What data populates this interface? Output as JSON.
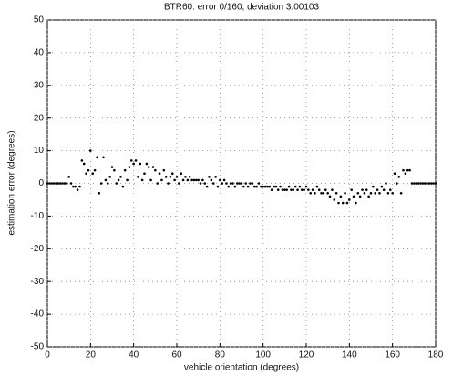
{
  "chart_data": {
    "type": "scatter",
    "title": "BTR60: error 0/160, deviation 3.00103",
    "xlabel": "vehicle orientation (degrees)",
    "ylabel": "estimation error (degrees)",
    "x": [
      0,
      1,
      2,
      3,
      4,
      5,
      6,
      7,
      8,
      9,
      10,
      11,
      12,
      13,
      14,
      15,
      16,
      17,
      18,
      19,
      20,
      21,
      22,
      23,
      24,
      25,
      26,
      27,
      28,
      29,
      30,
      31,
      32,
      33,
      34,
      35,
      36,
      37,
      38,
      39,
      40,
      41,
      42,
      43,
      44,
      45,
      46,
      47,
      48,
      49,
      50,
      51,
      52,
      53,
      54,
      55,
      56,
      57,
      58,
      59,
      60,
      61,
      62,
      63,
      64,
      65,
      66,
      67,
      68,
      69,
      70,
      71,
      72,
      73,
      74,
      75,
      76,
      77,
      78,
      79,
      80,
      81,
      82,
      83,
      84,
      85,
      86,
      87,
      88,
      89,
      90,
      91,
      92,
      93,
      94,
      95,
      96,
      97,
      98,
      99,
      100,
      101,
      102,
      103,
      104,
      105,
      106,
      107,
      108,
      109,
      110,
      111,
      112,
      113,
      114,
      115,
      116,
      117,
      118,
      119,
      120,
      121,
      122,
      123,
      124,
      125,
      126,
      127,
      128,
      129,
      130,
      131,
      132,
      133,
      134,
      135,
      136,
      137,
      138,
      139,
      140,
      141,
      142,
      143,
      144,
      145,
      146,
      147,
      148,
      149,
      150,
      151,
      152,
      153,
      154,
      155,
      156,
      157,
      158,
      159,
      160,
      161,
      162,
      163,
      164,
      165,
      166,
      167,
      168,
      169,
      170,
      171,
      172,
      173,
      174,
      175,
      176,
      177,
      178,
      179,
      180
    ],
    "values": [
      0,
      0,
      0,
      0,
      0,
      0,
      0,
      0,
      0,
      0,
      2,
      0,
      -1,
      -1,
      -2,
      -1,
      7,
      6,
      3,
      4,
      10,
      3,
      4,
      8,
      -3,
      0,
      8,
      1,
      0,
      2,
      5,
      4,
      0,
      1,
      2,
      -1,
      4,
      1,
      5,
      7,
      6,
      7,
      2,
      6,
      1,
      3,
      6,
      5,
      1,
      5,
      4,
      0,
      3,
      1,
      4,
      2,
      0,
      2,
      3,
      1,
      2,
      0,
      3,
      1,
      2,
      1,
      2,
      1,
      1,
      1,
      1,
      0,
      1,
      0,
      -1,
      2,
      1,
      0,
      2,
      -1,
      1,
      0,
      1,
      0,
      -1,
      0,
      0,
      -1,
      0,
      0,
      0,
      -1,
      0,
      -1,
      0,
      0,
      -1,
      -1,
      0,
      -1,
      -1,
      -1,
      -1,
      -1,
      -2,
      -1,
      -1,
      -2,
      -1,
      -2,
      -2,
      -2,
      -1,
      -2,
      -2,
      -1,
      -2,
      -1,
      -2,
      -2,
      -1,
      -2,
      -3,
      -2,
      -3,
      -1,
      -2,
      -3,
      -3,
      -2,
      -3,
      -4,
      -2,
      -5,
      -3,
      -6,
      -4,
      -6,
      -3,
      -6,
      -5,
      -2,
      -4,
      -6,
      -3,
      -4,
      -2,
      -3,
      -2,
      -4,
      -3,
      -1,
      -3,
      -2,
      -3,
      -1,
      -2,
      0,
      -3,
      -2,
      -3,
      3,
      0,
      2,
      -3,
      4,
      3,
      4,
      4,
      0,
      0,
      0,
      0,
      0,
      0,
      0,
      0,
      0,
      0,
      0,
      0
    ],
    "color": "#000000",
    "xlim": [
      0,
      180
    ],
    "xticks": [
      0,
      20,
      40,
      60,
      80,
      100,
      120,
      140,
      160,
      180
    ],
    "ylim": [
      -50,
      50
    ],
    "yticks": [
      -50,
      -40,
      -30,
      -20,
      -10,
      0,
      10,
      20,
      30,
      40,
      50
    ],
    "grid": true
  }
}
